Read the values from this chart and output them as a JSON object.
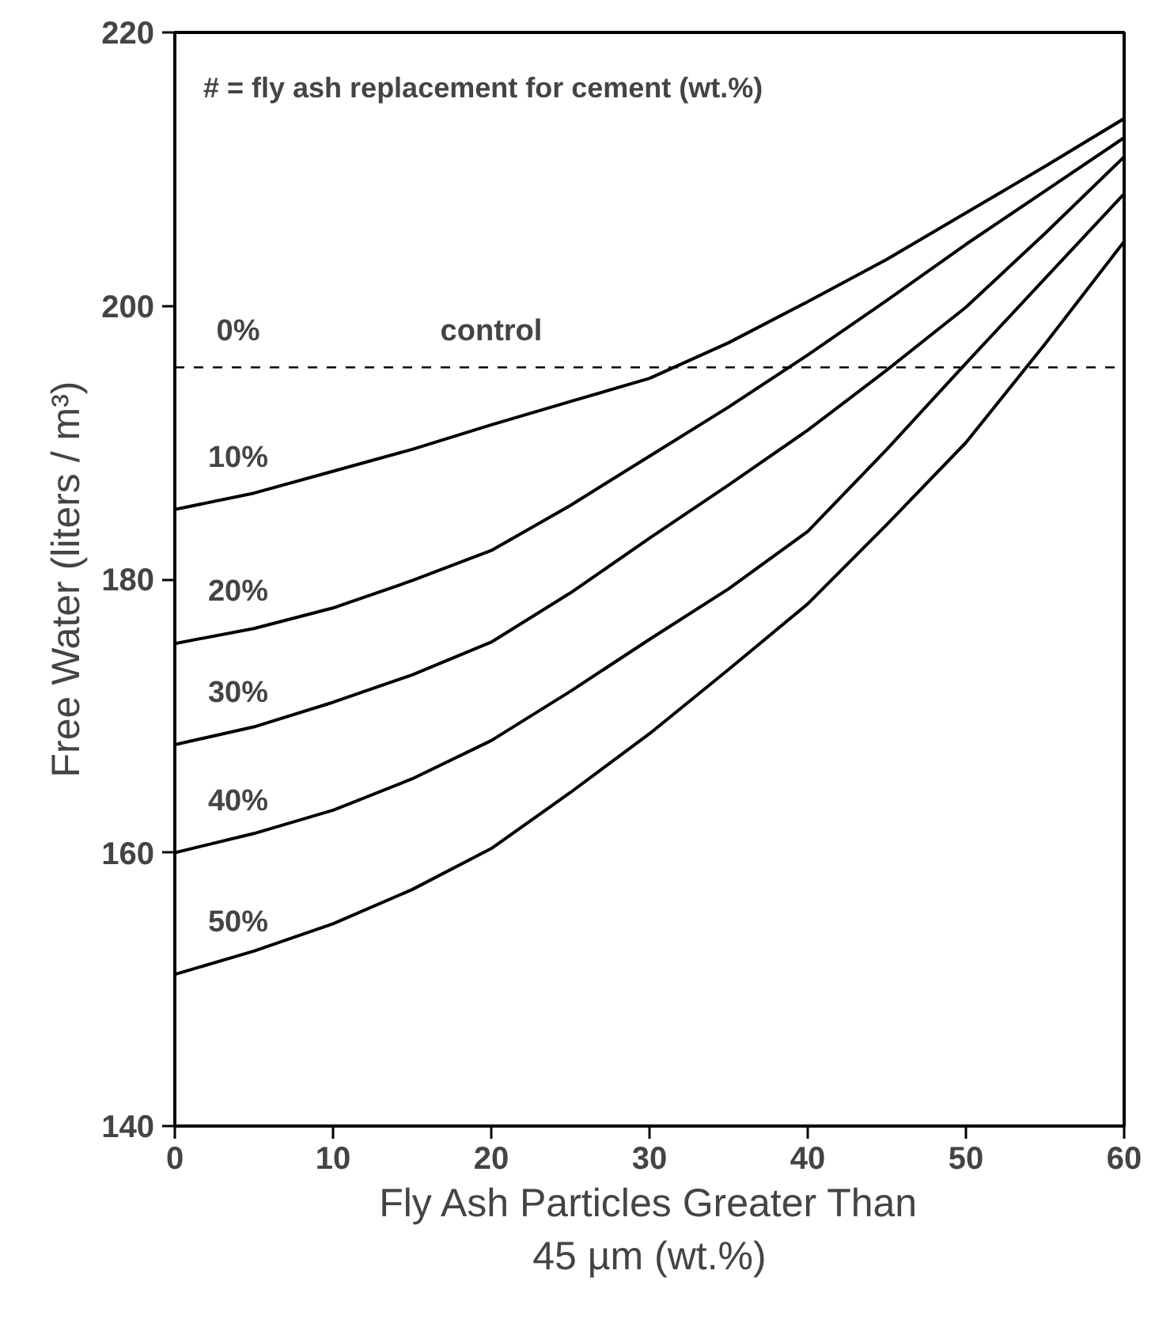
{
  "chart_data": {
    "type": "line",
    "xlabel": "Fly Ash Particles Greater Than\n45 µm (wt.%)",
    "ylabel": "Free Water (liters / m³)",
    "x": [
      0,
      5,
      10,
      15,
      20,
      25,
      30,
      35,
      40,
      45,
      50,
      55,
      60
    ],
    "series": [
      {
        "name": "10%",
        "color": "#000000",
        "values": [
          185.1,
          186.3,
          187.9,
          189.5,
          191.3,
          193.0,
          194.7,
          197.3,
          200.3,
          203.4,
          206.8,
          210.2,
          213.7
        ]
      },
      {
        "name": "20%",
        "color": "#000000",
        "values": [
          175.3,
          176.4,
          177.9,
          179.9,
          182.1,
          185.4,
          189.0,
          192.6,
          196.4,
          200.4,
          204.5,
          208.4,
          212.3
        ]
      },
      {
        "name": "30%",
        "color": "#000000",
        "values": [
          167.9,
          169.2,
          171.0,
          173.0,
          175.4,
          179.0,
          183.0,
          186.9,
          190.9,
          195.3,
          199.9,
          205.3,
          210.9
        ]
      },
      {
        "name": "40%",
        "color": "#000000",
        "values": [
          160.0,
          161.4,
          163.1,
          165.4,
          168.2,
          171.8,
          175.6,
          179.3,
          183.5,
          189.5,
          195.8,
          202.0,
          208.2
        ]
      },
      {
        "name": "50%",
        "color": "#000000",
        "values": [
          151.1,
          152.8,
          154.8,
          157.3,
          160.3,
          164.4,
          168.7,
          173.4,
          178.2,
          184.0,
          190.0,
          197.2,
          204.7
        ]
      }
    ],
    "ref_lines": [
      {
        "axis": "y",
        "value": 195.5,
        "label": "control",
        "line_style": "dashed",
        "color": "#000000"
      }
    ],
    "annotations": [
      "# = fly ash replacement for cement (wt.%)",
      {
        "text": "0%",
        "x": 4,
        "y": 195.5
      }
    ],
    "xlim": [
      0,
      60
    ],
    "ylim": [
      140,
      220
    ],
    "xticks": [
      0,
      10,
      20,
      30,
      40,
      50,
      60
    ],
    "yticks": [
      140,
      160,
      180,
      200,
      220
    ],
    "grid": false,
    "marker": "none",
    "line_style": "solid"
  }
}
